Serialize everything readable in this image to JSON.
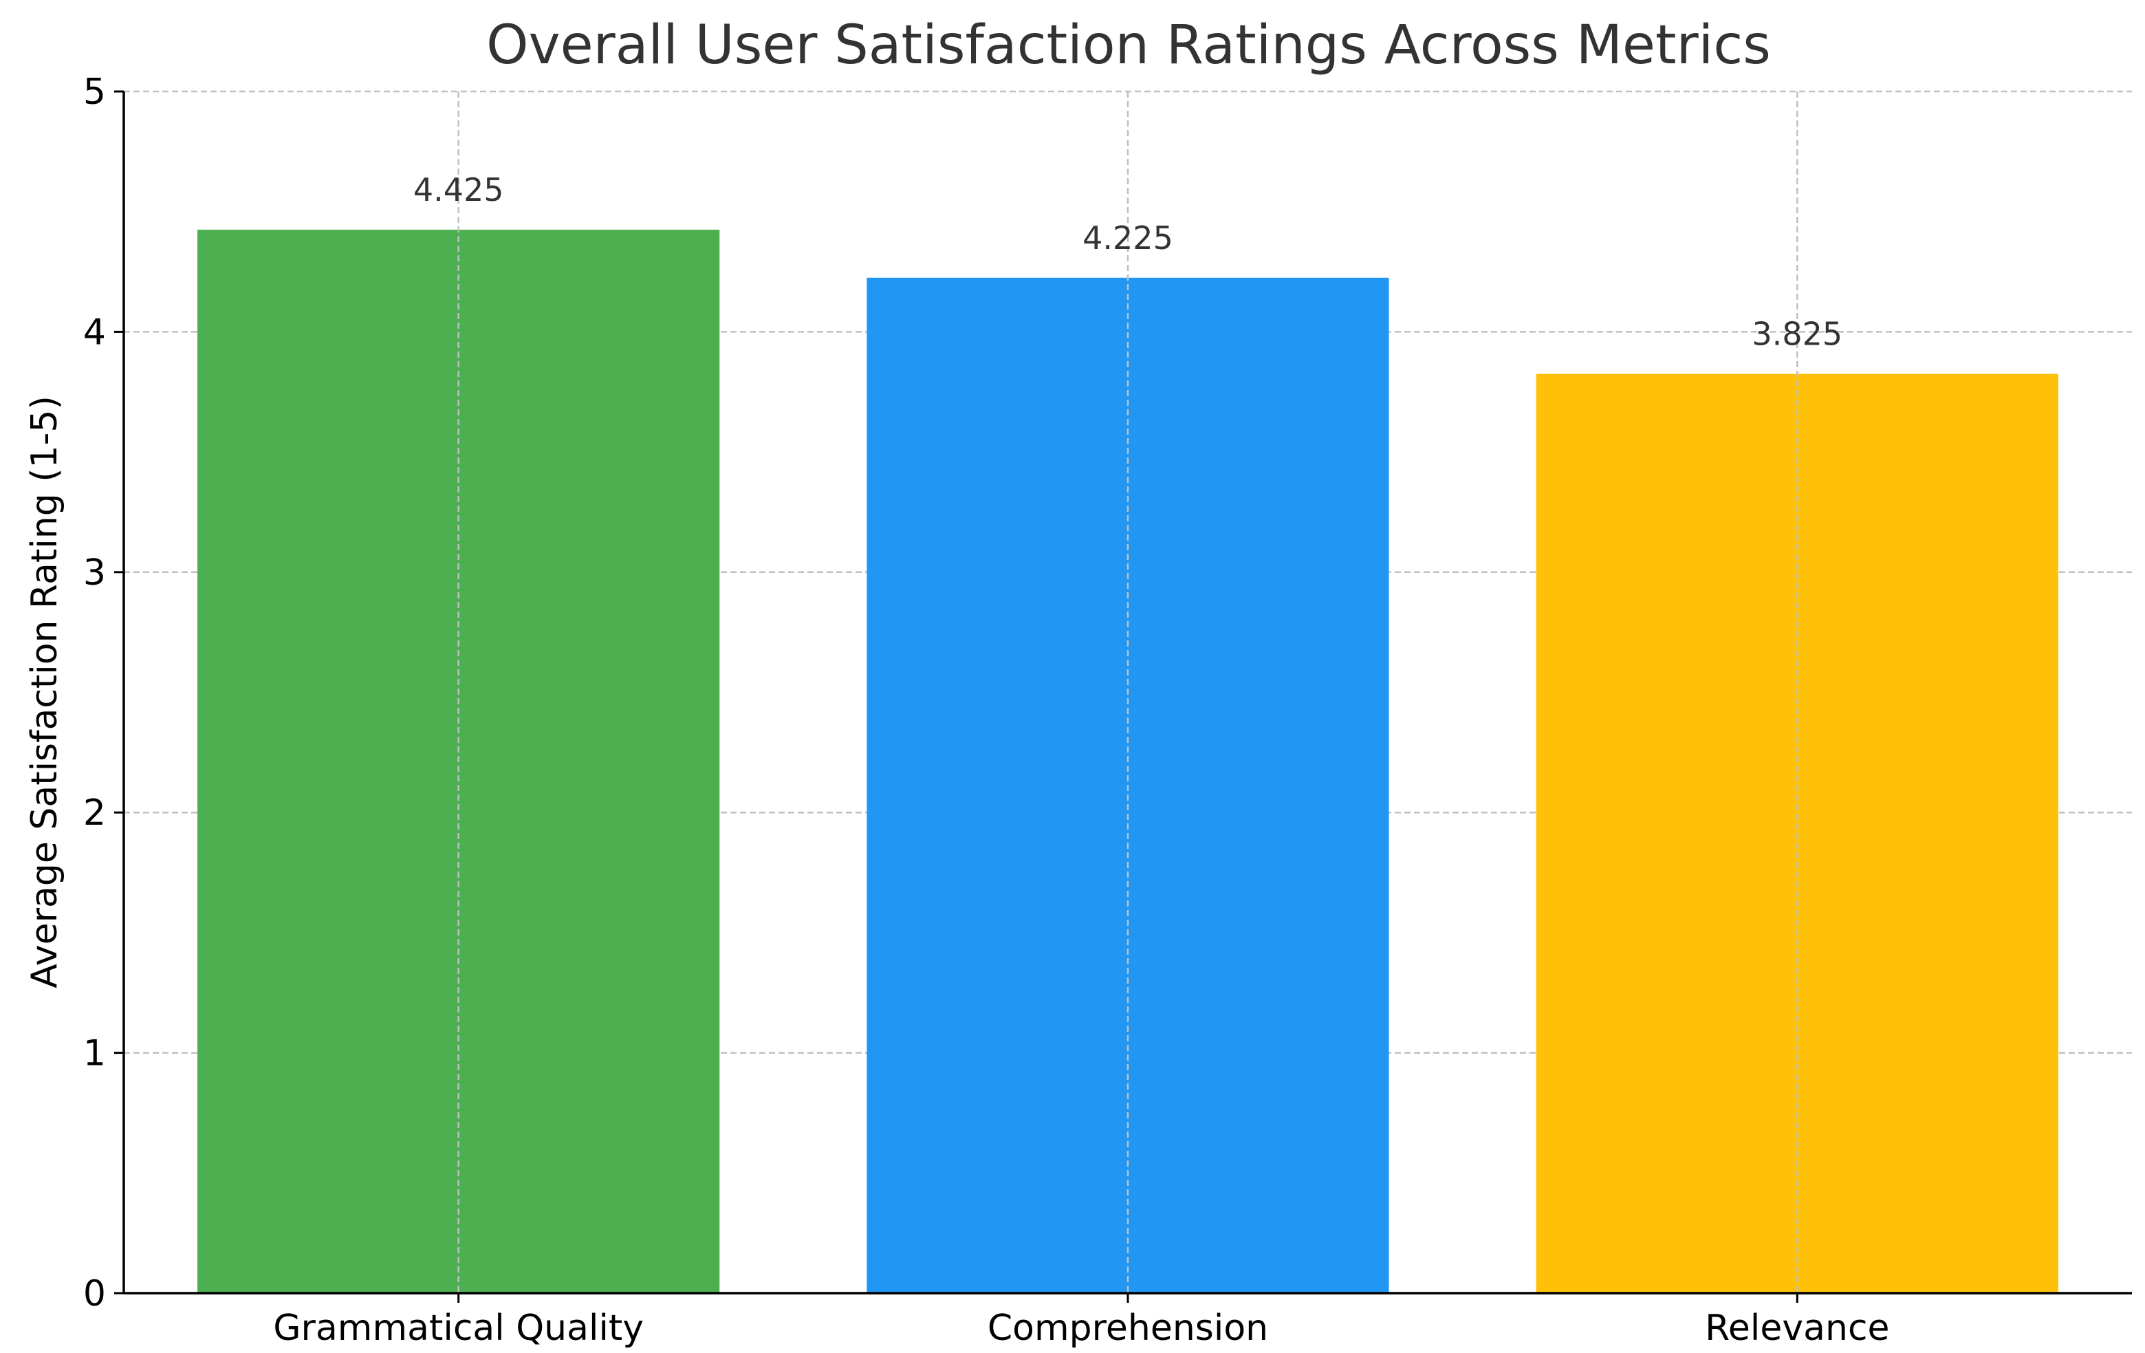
{
  "chart_data": {
    "type": "bar",
    "title": "Overall User Satisfaction Ratings Across Metrics",
    "xlabel": "",
    "ylabel": "Average Satisfaction Rating (1-5)",
    "categories": [
      "Grammatical Quality",
      "Comprehension",
      "Relevance"
    ],
    "values": [
      4.425,
      4.225,
      3.825
    ],
    "value_labels": [
      "4.425",
      "4.225",
      "3.825"
    ],
    "colors": [
      "#4caf50",
      "#2196f3",
      "#ffc107"
    ],
    "ylim": [
      0,
      5
    ],
    "yticks": [
      0,
      1,
      2,
      3,
      4,
      5
    ],
    "ytick_labels": [
      "0",
      "1",
      "2",
      "3",
      "4",
      "5"
    ],
    "grid": true,
    "grid_color": "#c0c0c0",
    "text_color": "#333333",
    "axis_color": "#000000"
  }
}
